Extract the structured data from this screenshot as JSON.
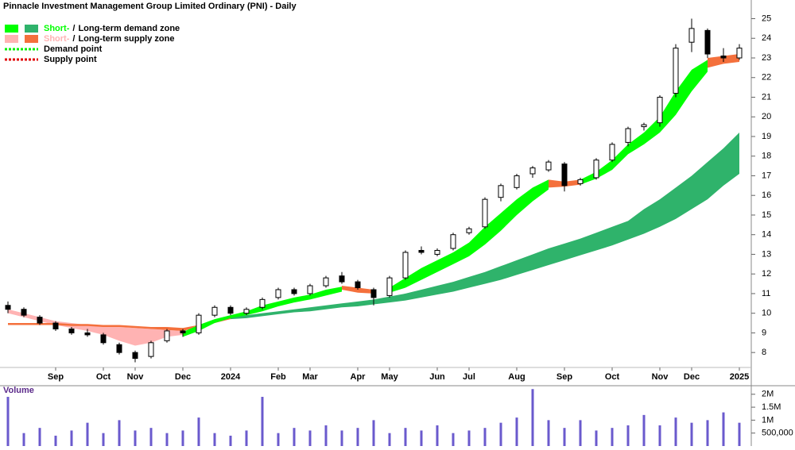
{
  "chart_data": {
    "type": "candlestick",
    "title": "Pinnacle Investment Management Group Limited Ordinary (PNI) - Daily",
    "categories": [
      null,
      null,
      null,
      "Sep",
      null,
      null,
      "Oct",
      null,
      "Nov",
      null,
      null,
      "Dec",
      null,
      null,
      "2024",
      null,
      null,
      "Feb",
      null,
      "Mar",
      null,
      null,
      "Apr",
      null,
      "May",
      null,
      null,
      "Jun",
      null,
      "Jul",
      null,
      null,
      "Aug",
      null,
      null,
      "Sep",
      null,
      null,
      "Oct",
      null,
      null,
      "Nov",
      null,
      "Dec",
      null,
      null,
      "2025"
    ],
    "candles": {
      "open": [
        10.4,
        10.2,
        9.8,
        9.5,
        9.2,
        9.0,
        8.9,
        8.4,
        8.0,
        7.8,
        8.6,
        9.1,
        9.0,
        9.9,
        10.3,
        10.0,
        10.3,
        10.8,
        11.2,
        11.0,
        11.4,
        11.9,
        11.6,
        11.2,
        10.9,
        11.8,
        13.2,
        13.0,
        13.3,
        14.1,
        14.4,
        15.9,
        16.4,
        17.1,
        17.3,
        17.6,
        16.6,
        16.9,
        17.8,
        18.7,
        19.5,
        19.7,
        21.2,
        23.8,
        24.4,
        23.1,
        23.0
      ],
      "high": [
        10.6,
        10.3,
        9.9,
        9.6,
        9.3,
        9.2,
        9.0,
        8.5,
        8.1,
        8.6,
        9.2,
        9.2,
        10.0,
        10.4,
        10.4,
        10.3,
        10.8,
        11.3,
        11.3,
        11.5,
        11.9,
        12.1,
        11.7,
        11.3,
        11.9,
        13.2,
        13.4,
        13.3,
        14.1,
        14.4,
        15.9,
        16.6,
        17.1,
        17.5,
        17.8,
        17.7,
        16.9,
        17.9,
        18.7,
        19.5,
        19.7,
        21.1,
        23.7,
        25.0,
        24.5,
        23.5,
        23.7
      ],
      "low": [
        10.0,
        9.8,
        9.4,
        9.1,
        8.9,
        8.8,
        8.4,
        7.9,
        7.5,
        7.7,
        8.5,
        8.8,
        8.9,
        9.8,
        9.9,
        9.9,
        10.2,
        10.7,
        10.9,
        10.9,
        11.3,
        11.5,
        11.2,
        10.4,
        10.8,
        11.7,
        13.0,
        12.9,
        13.2,
        14.0,
        14.3,
        15.7,
        16.3,
        16.9,
        17.2,
        16.2,
        16.5,
        16.8,
        17.7,
        18.5,
        19.3,
        19.5,
        21.0,
        23.3,
        23.0,
        22.8,
        22.9
      ],
      "close": [
        10.2,
        9.9,
        9.5,
        9.2,
        9.0,
        8.9,
        8.5,
        8.0,
        7.7,
        8.5,
        9.1,
        9.0,
        9.9,
        10.3,
        10.0,
        10.2,
        10.7,
        11.2,
        11.0,
        11.4,
        11.8,
        11.6,
        11.3,
        10.8,
        11.8,
        13.1,
        13.1,
        13.2,
        14.0,
        14.3,
        15.8,
        16.5,
        17.0,
        17.4,
        17.7,
        16.5,
        16.8,
        17.8,
        18.6,
        19.4,
        19.6,
        21.0,
        23.5,
        24.5,
        23.2,
        23.0,
        23.5
      ]
    },
    "zones": [
      {
        "color": "#2fb36b",
        "upper": [
          null,
          null,
          null,
          null,
          null,
          null,
          null,
          null,
          null,
          null,
          null,
          null,
          null,
          null,
          9.8,
          9.9,
          10.0,
          10.1,
          10.2,
          10.3,
          10.4,
          10.5,
          10.6,
          10.7,
          10.85,
          11.0,
          11.2,
          11.4,
          11.6,
          11.85,
          12.1,
          12.4,
          12.7,
          13.0,
          13.3,
          13.55,
          13.8,
          14.1,
          14.4,
          14.7,
          15.3,
          15.8,
          16.4,
          17.0,
          17.7,
          18.4,
          19.2
        ],
        "lower": [
          null,
          null,
          null,
          null,
          null,
          null,
          null,
          null,
          null,
          null,
          null,
          null,
          null,
          null,
          9.7,
          9.75,
          9.85,
          9.95,
          10.05,
          10.1,
          10.2,
          10.3,
          10.35,
          10.45,
          10.55,
          10.65,
          10.8,
          10.95,
          11.1,
          11.3,
          11.5,
          11.7,
          11.95,
          12.2,
          12.45,
          12.7,
          12.95,
          13.2,
          13.45,
          13.75,
          14.05,
          14.4,
          14.8,
          15.3,
          15.8,
          16.5,
          17.1
        ]
      },
      {
        "color": "#ffb3b3",
        "upper": [
          10.2,
          10.0,
          9.8,
          9.6,
          9.5,
          9.4,
          9.35,
          9.3,
          9.25,
          9.2,
          9.15,
          9.1,
          null,
          null,
          null,
          null,
          null,
          null,
          null,
          null,
          null,
          null,
          null,
          null,
          null,
          null,
          null,
          null,
          null,
          null,
          null,
          null,
          null,
          null,
          null,
          null,
          null,
          null,
          null,
          null,
          null,
          null,
          null,
          null,
          null,
          null,
          null
        ],
        "lower": [
          10.0,
          9.8,
          9.6,
          9.4,
          9.25,
          9.1,
          8.9,
          8.6,
          8.35,
          8.5,
          8.8,
          8.9,
          null,
          null,
          null,
          null,
          null,
          null,
          null,
          null,
          null,
          null,
          null,
          null,
          null,
          null,
          null,
          null,
          null,
          null,
          null,
          null,
          null,
          null,
          null,
          null,
          null,
          null,
          null,
          null,
          null,
          null,
          null,
          null,
          null,
          null,
          null
        ]
      },
      {
        "color": "#f4703c",
        "upper": [
          9.5,
          9.5,
          9.5,
          9.5,
          9.45,
          9.45,
          9.4,
          9.4,
          9.35,
          9.3,
          9.3,
          9.25,
          9.4,
          9.6,
          9.8,
          null,
          null,
          null,
          null,
          null,
          null,
          11.4,
          11.3,
          11.2,
          null,
          null,
          null,
          null,
          null,
          null,
          null,
          null,
          null,
          null,
          16.8,
          16.7,
          16.8,
          null,
          null,
          null,
          null,
          null,
          null,
          null,
          23.0,
          23.1,
          23.2
        ],
        "lower": [
          9.4,
          9.4,
          9.4,
          9.4,
          9.35,
          9.35,
          9.3,
          9.3,
          9.25,
          9.2,
          9.15,
          9.1,
          9.3,
          9.5,
          9.7,
          null,
          null,
          null,
          null,
          null,
          null,
          11.2,
          11.05,
          11.0,
          null,
          null,
          null,
          null,
          null,
          null,
          null,
          null,
          null,
          null,
          16.4,
          16.45,
          16.55,
          null,
          null,
          null,
          null,
          null,
          null,
          null,
          22.5,
          22.7,
          22.8
        ]
      },
      {
        "color": "#00ff00",
        "upper": [
          null,
          null,
          null,
          null,
          null,
          null,
          null,
          null,
          null,
          null,
          null,
          9.05,
          9.4,
          9.7,
          9.9,
          10.1,
          10.4,
          10.6,
          10.8,
          10.95,
          11.2,
          11.35,
          null,
          null,
          11.3,
          11.8,
          12.3,
          12.7,
          13.1,
          13.6,
          14.4,
          15.1,
          15.8,
          16.4,
          16.8,
          null,
          16.8,
          17.2,
          17.8,
          18.6,
          19.2,
          20.0,
          21.3,
          22.4,
          22.9,
          null,
          null
        ],
        "lower": [
          null,
          null,
          null,
          null,
          null,
          null,
          null,
          null,
          null,
          null,
          null,
          8.8,
          9.1,
          9.5,
          9.75,
          9.9,
          10.1,
          10.35,
          10.55,
          10.7,
          10.9,
          11.1,
          null,
          null,
          11.05,
          11.3,
          11.7,
          12.1,
          12.5,
          12.9,
          13.5,
          14.2,
          15.0,
          15.7,
          16.3,
          null,
          16.55,
          16.85,
          17.3,
          18.1,
          18.6,
          19.2,
          20.1,
          21.3,
          22.3,
          null,
          null
        ]
      }
    ],
    "legend": [
      {
        "short": "Short-",
        "sep": "/",
        "long": "Long-term demand zone",
        "short_zone": 3,
        "long_zone": 0
      },
      {
        "short": "Short-",
        "sep": "/",
        "long": "Long-term supply zone",
        "short_zone": 1,
        "long_zone": 2
      },
      {
        "text": "Demand point",
        "color": "#00ee00"
      },
      {
        "text": "Supply point",
        "color": "#e00000"
      }
    ],
    "ylim": [
      6.35,
      25.95
    ],
    "yticks": [
      8,
      9,
      10,
      11,
      12,
      13,
      14,
      15,
      16,
      17,
      18,
      19,
      20,
      21,
      22,
      23,
      24,
      25
    ],
    "volume": {
      "label": "Volume",
      "color": "#6a5acd",
      "values": [
        1900000,
        500000,
        700000,
        400000,
        600000,
        900000,
        500000,
        1000000,
        600000,
        700000,
        500000,
        600000,
        1100000,
        500000,
        400000,
        600000,
        1900000,
        500000,
        700000,
        600000,
        800000,
        600000,
        700000,
        1000000,
        500000,
        700000,
        600000,
        800000,
        500000,
        600000,
        700000,
        900000,
        1100000,
        2200000,
        1000000,
        700000,
        1000000,
        600000,
        700000,
        800000,
        1200000,
        800000,
        1100000,
        900000,
        1000000,
        1300000,
        900000
      ],
      "ylim": [
        0,
        2330000
      ],
      "yticks": [
        {
          "value": 2000000,
          "label": "2M"
        },
        {
          "value": 1500000,
          "label": "1.5M"
        },
        {
          "value": 1000000,
          "label": "1M"
        },
        {
          "value": 500000,
          "label": "500,000"
        }
      ]
    }
  }
}
